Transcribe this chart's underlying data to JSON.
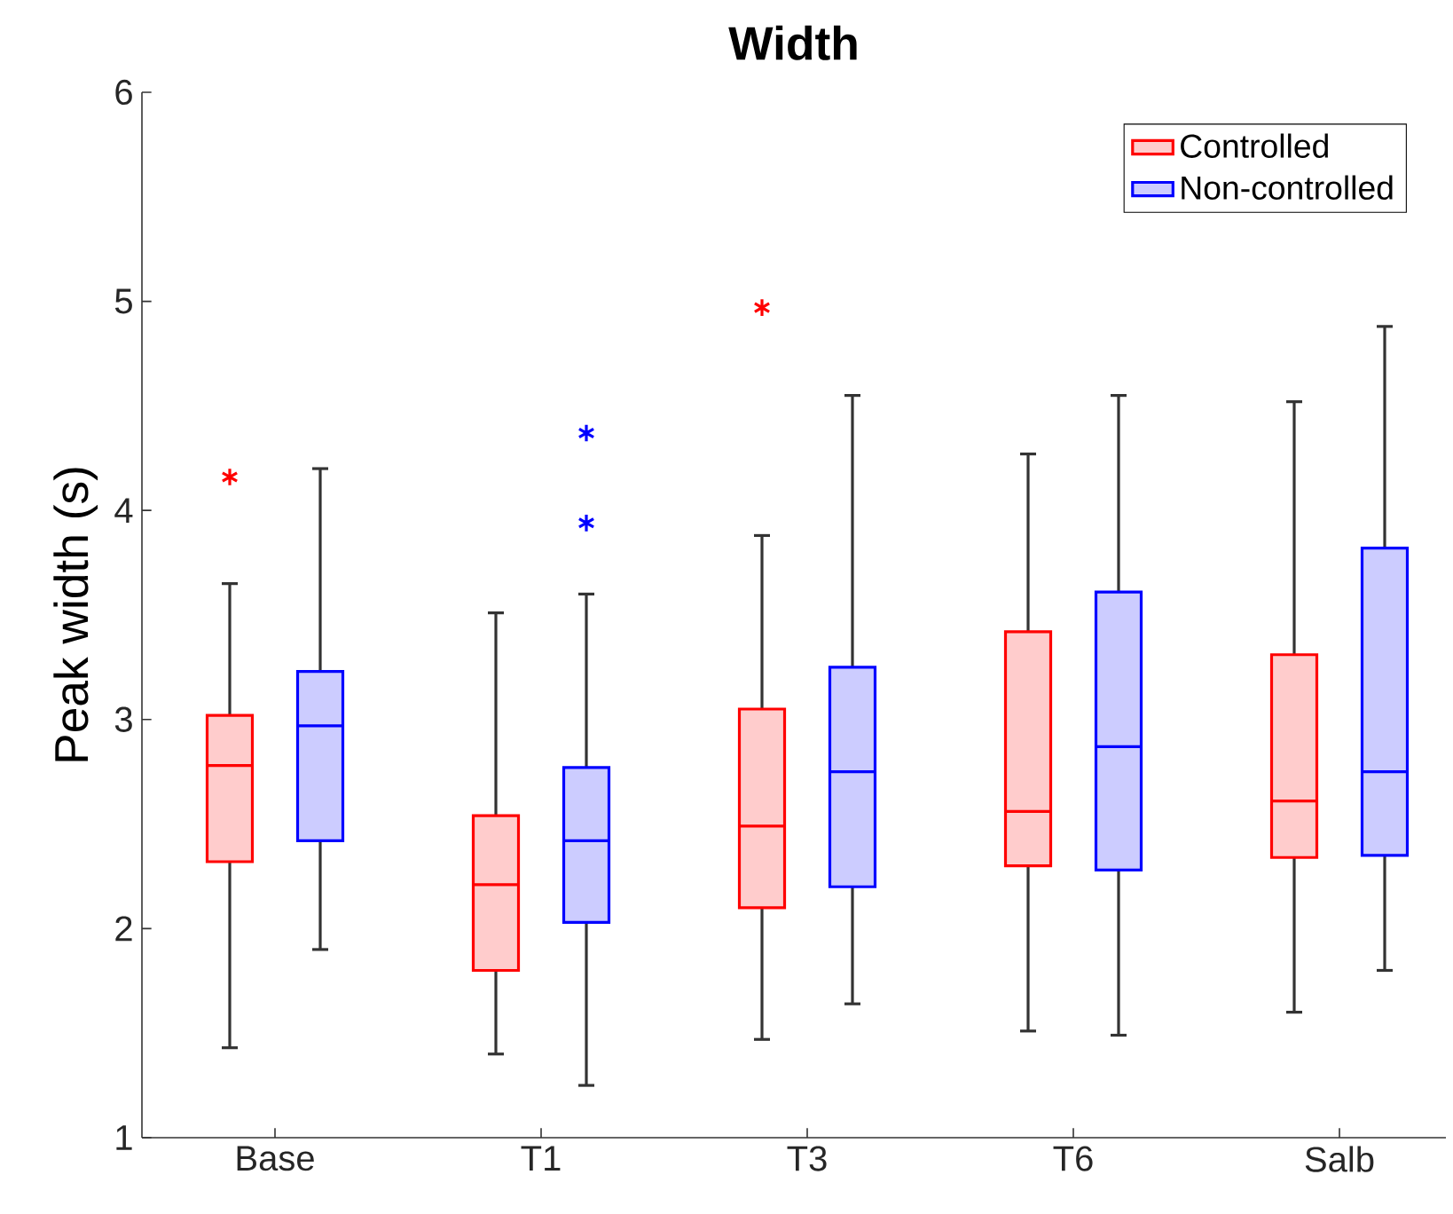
{
  "chart_data": {
    "type": "box",
    "title": "Width",
    "ylabel": "Peak width (s)",
    "categories": [
      "Base",
      "T1",
      "T3",
      "T6",
      "Salb"
    ],
    "ylim": [
      1,
      6
    ],
    "yticks": [
      1,
      2,
      3,
      4,
      5,
      6
    ],
    "grid": false,
    "legend": "top right",
    "series": [
      {
        "name": "Controlled",
        "color": "#ff0000",
        "boxes": [
          {
            "low": 1.43,
            "q1": 2.32,
            "median": 2.78,
            "q3": 3.02,
            "high": 3.65,
            "outliers": [
              4.16
            ]
          },
          {
            "low": 1.4,
            "q1": 1.8,
            "median": 2.21,
            "q3": 2.54,
            "high": 3.51
          },
          {
            "low": 1.47,
            "q1": 2.1,
            "median": 2.49,
            "q3": 3.05,
            "high": 3.88,
            "outliers": [
              4.97
            ]
          },
          {
            "low": 1.51,
            "q1": 2.3,
            "median": 2.56,
            "q3": 3.42,
            "high": 4.27
          },
          {
            "low": 1.6,
            "q1": 2.34,
            "median": 2.61,
            "q3": 3.31,
            "high": 4.52
          }
        ]
      },
      {
        "name": "Non-controlled",
        "color": "#0000ff",
        "boxes": [
          {
            "low": 1.9,
            "q1": 2.42,
            "median": 2.97,
            "q3": 3.23,
            "high": 4.2
          },
          {
            "low": 1.25,
            "q1": 2.03,
            "median": 2.42,
            "q3": 2.77,
            "high": 3.6,
            "outliers": [
              4.37,
              3.94
            ]
          },
          {
            "low": 1.64,
            "q1": 2.2,
            "median": 2.75,
            "q3": 3.25,
            "high": 4.55
          },
          {
            "low": 1.49,
            "q1": 2.28,
            "median": 2.87,
            "q3": 3.61,
            "high": 4.55
          },
          {
            "low": 1.8,
            "q1": 2.35,
            "median": 2.75,
            "q3": 3.82,
            "high": 4.88
          }
        ]
      }
    ]
  }
}
